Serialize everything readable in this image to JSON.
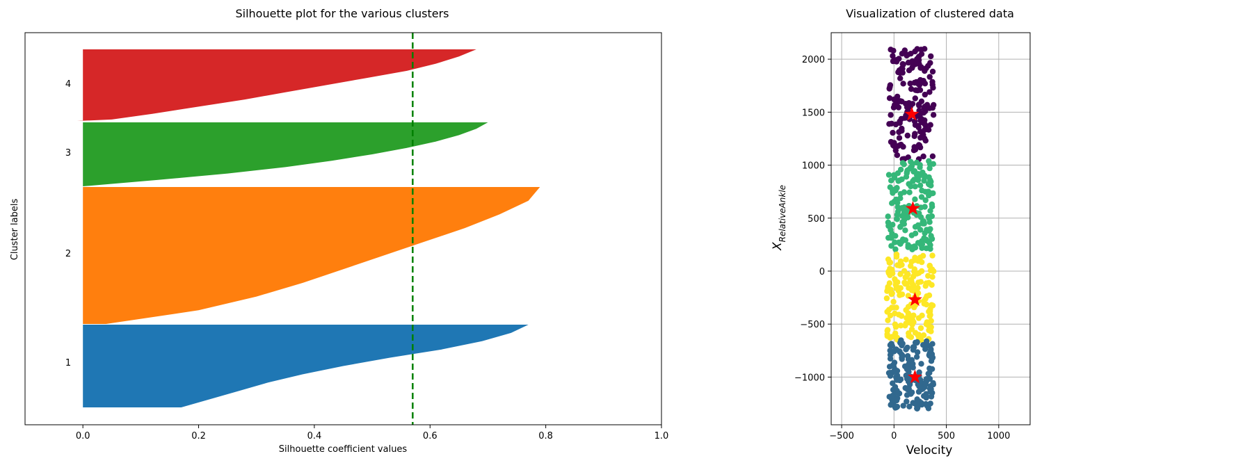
{
  "chart_data": [
    {
      "type": "bar",
      "title": "Silhouette plot for the various clusters",
      "xlabel": "Silhouette coefficient values",
      "ylabel": "Cluster labels",
      "xlim": [
        -0.1,
        1.0
      ],
      "xticks": [
        "0.0",
        "0.2",
        "0.4",
        "0.6",
        "0.8",
        "1.0"
      ],
      "average_silhouette_line": 0.57,
      "series": [
        {
          "label": "1",
          "color": "#1f77b4",
          "profile": [
            [
              0,
              0.17
            ],
            [
              0.1,
              0.22
            ],
            [
              0.2,
              0.27
            ],
            [
              0.3,
              0.32
            ],
            [
              0.4,
              0.38
            ],
            [
              0.5,
              0.45
            ],
            [
              0.6,
              0.53
            ],
            [
              0.7,
              0.62
            ],
            [
              0.8,
              0.69
            ],
            [
              0.9,
              0.74
            ],
            [
              1,
              0.77
            ]
          ]
        },
        {
          "label": "2",
          "color": "#ff7f0e",
          "profile": [
            [
              0,
              0.04
            ],
            [
              0.1,
              0.2
            ],
            [
              0.2,
              0.3
            ],
            [
              0.3,
              0.38
            ],
            [
              0.4,
              0.45
            ],
            [
              0.5,
              0.52
            ],
            [
              0.6,
              0.59
            ],
            [
              0.7,
              0.66
            ],
            [
              0.8,
              0.72
            ],
            [
              0.9,
              0.77
            ],
            [
              1,
              0.79
            ]
          ]
        },
        {
          "label": "3",
          "color": "#2ca02c",
          "profile": [
            [
              0,
              0.0
            ],
            [
              0.1,
              0.13
            ],
            [
              0.2,
              0.25
            ],
            [
              0.3,
              0.35
            ],
            [
              0.4,
              0.43
            ],
            [
              0.5,
              0.5
            ],
            [
              0.6,
              0.56
            ],
            [
              0.7,
              0.61
            ],
            [
              0.8,
              0.65
            ],
            [
              0.9,
              0.68
            ],
            [
              1,
              0.7
            ]
          ]
        },
        {
          "label": "4",
          "color": "#d62728",
          "profile": [
            [
              0,
              -0.01
            ],
            [
              0.02,
              0.05
            ],
            [
              0.1,
              0.12
            ],
            [
              0.2,
              0.2
            ],
            [
              0.3,
              0.28
            ],
            [
              0.4,
              0.35
            ],
            [
              0.5,
              0.42
            ],
            [
              0.6,
              0.49
            ],
            [
              0.7,
              0.56
            ],
            [
              0.8,
              0.61
            ],
            [
              0.9,
              0.65
            ],
            [
              1,
              0.68
            ]
          ]
        }
      ]
    },
    {
      "type": "scatter",
      "title": "Visualization of clustered data",
      "xlabel": "Velocity",
      "ylabel_base": "X",
      "ylabel_sub": "RelativeAnkle",
      "xlim": [
        -600,
        1300
      ],
      "ylim": [
        -1450,
        2250
      ],
      "xticks": [
        -500,
        0,
        500,
        1000
      ],
      "yticks": [
        -1000,
        -500,
        0,
        500,
        1000,
        1500,
        2000
      ],
      "grid": true,
      "clusters": [
        {
          "color": "#440154",
          "x_range": [
            -50,
            380
          ],
          "y_range": [
            1050,
            2100
          ],
          "center": [
            170,
            1480
          ]
        },
        {
          "color": "#35b779",
          "x_range": [
            -60,
            380
          ],
          "y_range": [
            200,
            1040
          ],
          "center": [
            180,
            590
          ]
        },
        {
          "color": "#fde725",
          "x_range": [
            -70,
            380
          ],
          "y_range": [
            -650,
            180
          ],
          "center": [
            200,
            -270
          ]
        },
        {
          "color": "#31688e",
          "x_range": [
            -50,
            380
          ],
          "y_range": [
            -1300,
            -650
          ],
          "center": [
            200,
            -1000
          ]
        }
      ],
      "center_color": "#ff0000"
    }
  ]
}
